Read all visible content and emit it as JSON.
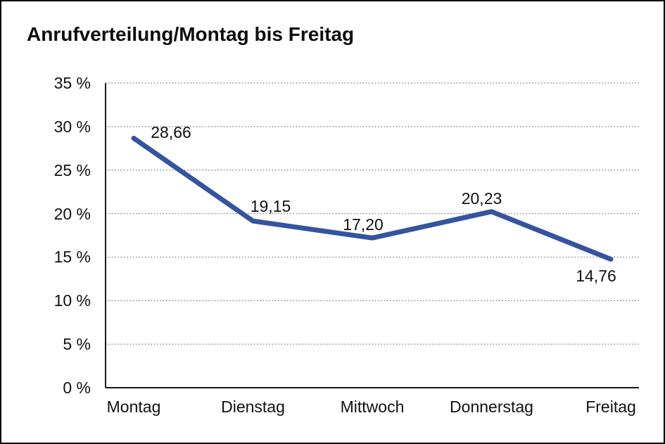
{
  "chart_data": {
    "type": "line",
    "title": "Anrufverteilung/Montag bis Freitag",
    "categories": [
      "Montag",
      "Dienstag",
      "Mittwoch",
      "Donnerstag",
      "Freitag"
    ],
    "series": [
      {
        "name": "Anrufverteilung",
        "values": [
          28.66,
          19.15,
          17.2,
          20.23,
          14.76
        ]
      }
    ],
    "value_labels": [
      "28,66",
      "19,15",
      "17,20",
      "20,23",
      "14,76"
    ],
    "xlabel": "",
    "ylabel": "",
    "ylim": [
      0,
      35
    ],
    "y_tick_values": [
      35,
      30,
      25,
      20,
      15,
      10,
      5,
      0
    ],
    "y_tick_labels": [
      "35 %",
      "30 %",
      "25 %",
      "20 %",
      "15 %",
      "10 %",
      "5 %",
      "0 %"
    ],
    "grid": "horizontal dotted",
    "legend_position": "none",
    "colors": {
      "line": "#35549F",
      "axis": "#1a1a1a",
      "grid": "#707070",
      "text": "#111111",
      "background": "#ffffff",
      "border": "#000000"
    }
  }
}
